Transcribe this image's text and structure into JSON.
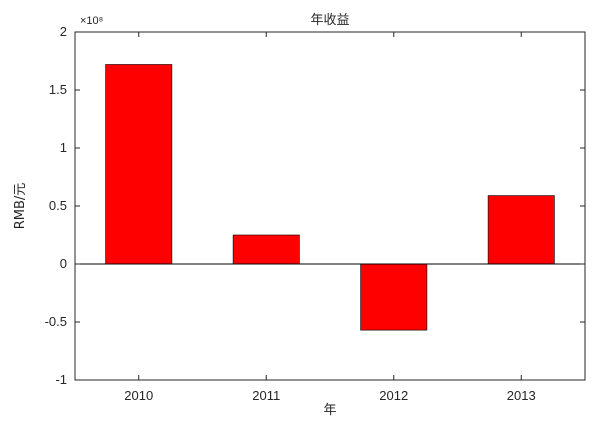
{
  "chart_data": {
    "type": "bar",
    "title": "年收益",
    "xlabel": "年",
    "ylabel": "RMB/元",
    "categories": [
      "2010",
      "2011",
      "2012",
      "2013"
    ],
    "values": [
      1.72,
      0.25,
      -0.57,
      0.59
    ],
    "y_multiplier": "×10⁸",
    "ylim": [
      -1,
      2
    ],
    "yticks": [
      -1,
      -0.5,
      0,
      0.5,
      1,
      1.5,
      2
    ],
    "ytick_labels": [
      "-1",
      "-0.5",
      "0",
      "0.5",
      "1",
      "1.5",
      "2"
    ],
    "bar_color": "#ff0000",
    "baseline_color": "#000000",
    "grid": false,
    "legend": "none"
  }
}
